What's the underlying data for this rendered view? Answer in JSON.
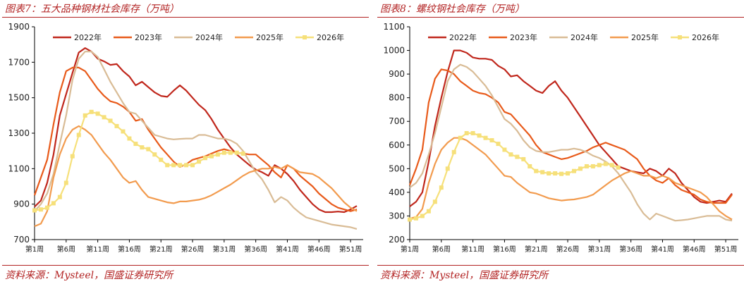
{
  "chart_data": [
    {
      "type": "line",
      "title": "图表7：五大品种钢材社会库存（万吨）",
      "source": "资料来源：Mysteel，国盛证券研究所",
      "ylim": [
        700,
        1900
      ],
      "yticks": [
        700,
        900,
        1100,
        1300,
        1500,
        1700,
        1900
      ],
      "xlim": [
        1,
        53
      ],
      "xticks": [
        1,
        6,
        11,
        16,
        21,
        26,
        31,
        36,
        41,
        46,
        51
      ],
      "xtick_labels": [
        "第1周",
        "第6周",
        "第11周",
        "第16周",
        "第21周",
        "第26周",
        "第31周",
        "第36周",
        "第41周",
        "第46周",
        "第51周"
      ],
      "grid": false,
      "legend_position": "top",
      "series": [
        {
          "name": "2022年",
          "color": "#c0271c",
          "marker": false,
          "x": [
            1,
            2,
            3,
            4,
            5,
            6,
            7,
            8,
            9,
            10,
            11,
            12,
            13,
            14,
            15,
            16,
            17,
            18,
            19,
            20,
            21,
            22,
            23,
            24,
            25,
            26,
            27,
            28,
            29,
            30,
            31,
            32,
            33,
            34,
            35,
            36,
            37,
            38,
            39,
            40,
            41,
            42,
            43,
            44,
            45,
            46,
            47,
            48,
            49,
            50,
            51,
            52
          ],
          "values": [
            885,
            920,
            1020,
            1180,
            1400,
            1520,
            1640,
            1755,
            1780,
            1760,
            1720,
            1705,
            1685,
            1690,
            1650,
            1620,
            1570,
            1590,
            1560,
            1530,
            1510,
            1505,
            1540,
            1570,
            1540,
            1500,
            1460,
            1430,
            1380,
            1320,
            1270,
            1220,
            1180,
            1150,
            1120,
            1095,
            1080,
            1060,
            1120,
            1100,
            1070,
            1030,
            980,
            940,
            900,
            870,
            855,
            855,
            858,
            855,
            870,
            890
          ]
        },
        {
          "name": "2023年",
          "color": "#e85a1a",
          "marker": false,
          "x": [
            1,
            2,
            3,
            4,
            5,
            6,
            7,
            8,
            9,
            10,
            11,
            12,
            13,
            14,
            15,
            16,
            17,
            18,
            19,
            20,
            21,
            22,
            23,
            24,
            25,
            26,
            27,
            28,
            29,
            30,
            31,
            32,
            33,
            34,
            35,
            36,
            37,
            38,
            39,
            40,
            41,
            42,
            43,
            44,
            45,
            46,
            47,
            48,
            49,
            50,
            51,
            52
          ],
          "values": [
            950,
            1050,
            1150,
            1350,
            1530,
            1650,
            1670,
            1670,
            1650,
            1600,
            1550,
            1510,
            1480,
            1470,
            1450,
            1420,
            1370,
            1380,
            1320,
            1270,
            1220,
            1180,
            1140,
            1110,
            1125,
            1150,
            1160,
            1170,
            1185,
            1200,
            1210,
            1200,
            1190,
            1185,
            1180,
            1180,
            1150,
            1120,
            1080,
            1050,
            1120,
            1100,
            1060,
            1030,
            1000,
            960,
            930,
            900,
            880,
            870,
            860,
            870
          ]
        },
        {
          "name": "2024年",
          "color": "#d9bc96",
          "marker": false,
          "x": [
            1,
            2,
            3,
            4,
            5,
            6,
            7,
            8,
            9,
            10,
            11,
            12,
            13,
            14,
            15,
            16,
            17,
            18,
            19,
            20,
            21,
            22,
            23,
            24,
            25,
            26,
            27,
            28,
            29,
            30,
            31,
            32,
            33,
            34,
            35,
            36,
            37,
            38,
            39,
            40,
            41,
            42,
            43,
            44,
            45,
            46,
            47,
            48,
            49,
            50,
            51,
            52
          ],
          "values": [
            860,
            900,
            960,
            1070,
            1240,
            1400,
            1600,
            1720,
            1760,
            1760,
            1730,
            1660,
            1590,
            1530,
            1470,
            1420,
            1410,
            1370,
            1330,
            1290,
            1280,
            1270,
            1265,
            1268,
            1270,
            1270,
            1290,
            1290,
            1280,
            1270,
            1270,
            1260,
            1240,
            1200,
            1140,
            1080,
            1040,
            980,
            910,
            940,
            920,
            880,
            850,
            825,
            815,
            805,
            795,
            785,
            780,
            775,
            770,
            760
          ]
        },
        {
          "name": "2025年",
          "color": "#f29b4e",
          "marker": false,
          "x": [
            1,
            2,
            3,
            4,
            5,
            6,
            7,
            8,
            9,
            10,
            11,
            12,
            13,
            14,
            15,
            16,
            17,
            18,
            19,
            20,
            21,
            22,
            23,
            24,
            25,
            26,
            27,
            28,
            29,
            30,
            31,
            32,
            33,
            34,
            35,
            36,
            37,
            38,
            39,
            40,
            41,
            42,
            43,
            44,
            45,
            46,
            47,
            48,
            49,
            50,
            51,
            52
          ],
          "values": [
            775,
            790,
            860,
            1050,
            1180,
            1270,
            1320,
            1340,
            1320,
            1290,
            1240,
            1190,
            1150,
            1100,
            1050,
            1020,
            1030,
            980,
            940,
            930,
            920,
            910,
            905,
            915,
            915,
            920,
            925,
            935,
            950,
            970,
            990,
            1010,
            1035,
            1060,
            1080,
            1090,
            1100,
            1100,
            1110,
            1100,
            1120,
            1100,
            1080,
            1075,
            1070,
            1050,
            1020,
            990,
            950,
            910,
            880,
            860
          ]
        },
        {
          "name": "2026年",
          "color": "#f6e07a",
          "marker": true,
          "x": [
            1,
            2,
            3,
            4,
            5,
            6,
            7,
            8,
            9,
            10,
            11,
            12,
            13,
            14,
            15,
            16,
            17,
            18,
            19,
            20,
            21,
            22,
            23,
            24,
            25,
            26,
            27,
            28,
            29,
            30,
            31,
            32,
            33,
            34
          ],
          "values": [
            865,
            870,
            880,
            905,
            940,
            1020,
            1170,
            1290,
            1400,
            1420,
            1410,
            1390,
            1370,
            1340,
            1310,
            1270,
            1240,
            1220,
            1210,
            1180,
            1150,
            1120,
            1120,
            1120,
            1120,
            1120,
            1140,
            1160,
            1170,
            1180,
            1190,
            1190,
            1190,
            1185
          ]
        }
      ]
    },
    {
      "type": "line",
      "title": "图表8：螺纹钢社会库存（万吨）",
      "source": "资料来源：Mysteel，国盛证券研究所",
      "ylim": [
        200,
        1100
      ],
      "yticks": [
        200,
        300,
        400,
        500,
        600,
        700,
        800,
        900,
        1000,
        1100
      ],
      "xlim": [
        1,
        53
      ],
      "xticks": [
        1,
        6,
        11,
        16,
        21,
        26,
        31,
        36,
        41,
        46,
        51
      ],
      "xtick_labels": [
        "第1周",
        "第6周",
        "第11周",
        "第16周",
        "第21周",
        "第26周",
        "第31周",
        "第36周",
        "第41周",
        "第46周",
        "第51周"
      ],
      "grid": false,
      "legend_position": "top",
      "series": [
        {
          "name": "2022年",
          "color": "#c0271c",
          "marker": false,
          "x": [
            1,
            2,
            3,
            4,
            5,
            6,
            7,
            8,
            9,
            10,
            11,
            12,
            13,
            14,
            15,
            16,
            17,
            18,
            19,
            20,
            21,
            22,
            23,
            24,
            25,
            26,
            27,
            28,
            29,
            30,
            31,
            32,
            33,
            34,
            35,
            36,
            37,
            38,
            39,
            40,
            41,
            42,
            43,
            44,
            45,
            46,
            47,
            48,
            49,
            50,
            51,
            52
          ],
          "values": [
            340,
            360,
            400,
            530,
            680,
            800,
            910,
            1000,
            1000,
            990,
            970,
            965,
            965,
            960,
            935,
            920,
            890,
            895,
            870,
            850,
            830,
            820,
            850,
            870,
            830,
            800,
            760,
            720,
            680,
            640,
            600,
            570,
            540,
            510,
            500,
            490,
            485,
            480,
            500,
            490,
            470,
            500,
            480,
            440,
            410,
            380,
            360,
            355,
            360,
            365,
            360,
            395
          ]
        },
        {
          "name": "2023年",
          "color": "#e85a1a",
          "marker": false,
          "x": [
            1,
            2,
            3,
            4,
            5,
            6,
            7,
            8,
            9,
            10,
            11,
            12,
            13,
            14,
            15,
            16,
            17,
            18,
            19,
            20,
            21,
            22,
            23,
            24,
            25,
            26,
            27,
            28,
            29,
            30,
            31,
            32,
            33,
            34,
            35,
            36,
            37,
            38,
            39,
            40,
            41,
            42,
            43,
            44,
            45,
            46,
            47,
            48,
            49,
            50,
            51,
            52
          ],
          "values": [
            430,
            500,
            580,
            780,
            880,
            920,
            915,
            900,
            870,
            850,
            830,
            820,
            815,
            800,
            780,
            740,
            730,
            700,
            670,
            640,
            600,
            570,
            560,
            550,
            540,
            545,
            555,
            565,
            575,
            590,
            600,
            610,
            600,
            590,
            580,
            560,
            540,
            500,
            470,
            450,
            440,
            460,
            430,
            410,
            400,
            390,
            370,
            360,
            355,
            355,
            355,
            390
          ]
        },
        {
          "name": "2024年",
          "color": "#d9bc96",
          "marker": false,
          "x": [
            1,
            2,
            3,
            4,
            5,
            6,
            7,
            8,
            9,
            10,
            11,
            12,
            13,
            14,
            15,
            16,
            17,
            18,
            19,
            20,
            21,
            22,
            23,
            24,
            25,
            26,
            27,
            28,
            29,
            30,
            31,
            32,
            33,
            34,
            35,
            36,
            37,
            38,
            39,
            40,
            41,
            42,
            43,
            44,
            45,
            46,
            47,
            48,
            49,
            50,
            51,
            52
          ],
          "values": [
            420,
            440,
            480,
            560,
            650,
            760,
            870,
            920,
            940,
            930,
            910,
            880,
            850,
            810,
            760,
            710,
            690,
            660,
            620,
            590,
            575,
            570,
            570,
            575,
            580,
            580,
            585,
            580,
            570,
            555,
            545,
            530,
            510,
            480,
            440,
            400,
            350,
            310,
            285,
            310,
            300,
            290,
            280,
            282,
            285,
            290,
            295,
            300,
            300,
            300,
            285,
            280
          ]
        },
        {
          "name": "2025年",
          "color": "#f29b4e",
          "marker": false,
          "x": [
            1,
            2,
            3,
            4,
            5,
            6,
            7,
            8,
            9,
            10,
            11,
            12,
            13,
            14,
            15,
            16,
            17,
            18,
            19,
            20,
            21,
            22,
            23,
            24,
            25,
            26,
            27,
            28,
            29,
            30,
            31,
            32,
            33,
            34,
            35,
            36,
            37,
            38,
            39,
            40,
            41,
            42,
            43,
            44,
            45,
            46,
            47,
            48,
            49,
            50,
            51,
            52
          ],
          "values": [
            290,
            295,
            330,
            440,
            520,
            580,
            610,
            630,
            630,
            620,
            600,
            580,
            560,
            530,
            500,
            470,
            465,
            440,
            420,
            400,
            395,
            385,
            375,
            370,
            365,
            368,
            370,
            375,
            380,
            390,
            410,
            430,
            450,
            465,
            480,
            490,
            480,
            470,
            470,
            460,
            470,
            460,
            440,
            430,
            420,
            410,
            400,
            380,
            350,
            320,
            300,
            285
          ]
        },
        {
          "name": "2026年",
          "color": "#f6e07a",
          "marker": true,
          "x": [
            1,
            2,
            3,
            4,
            5,
            6,
            7,
            8,
            9,
            10,
            11,
            12,
            13,
            14,
            15,
            16,
            17,
            18,
            19,
            20,
            21,
            22,
            23,
            24,
            25,
            26,
            27,
            28,
            29,
            30,
            31,
            32,
            33,
            34
          ],
          "values": [
            285,
            290,
            300,
            320,
            360,
            420,
            500,
            570,
            630,
            650,
            650,
            640,
            630,
            620,
            605,
            580,
            560,
            550,
            540,
            510,
            490,
            485,
            480,
            480,
            478,
            480,
            490,
            500,
            510,
            510,
            515,
            520,
            515,
            505
          ]
        }
      ]
    }
  ]
}
